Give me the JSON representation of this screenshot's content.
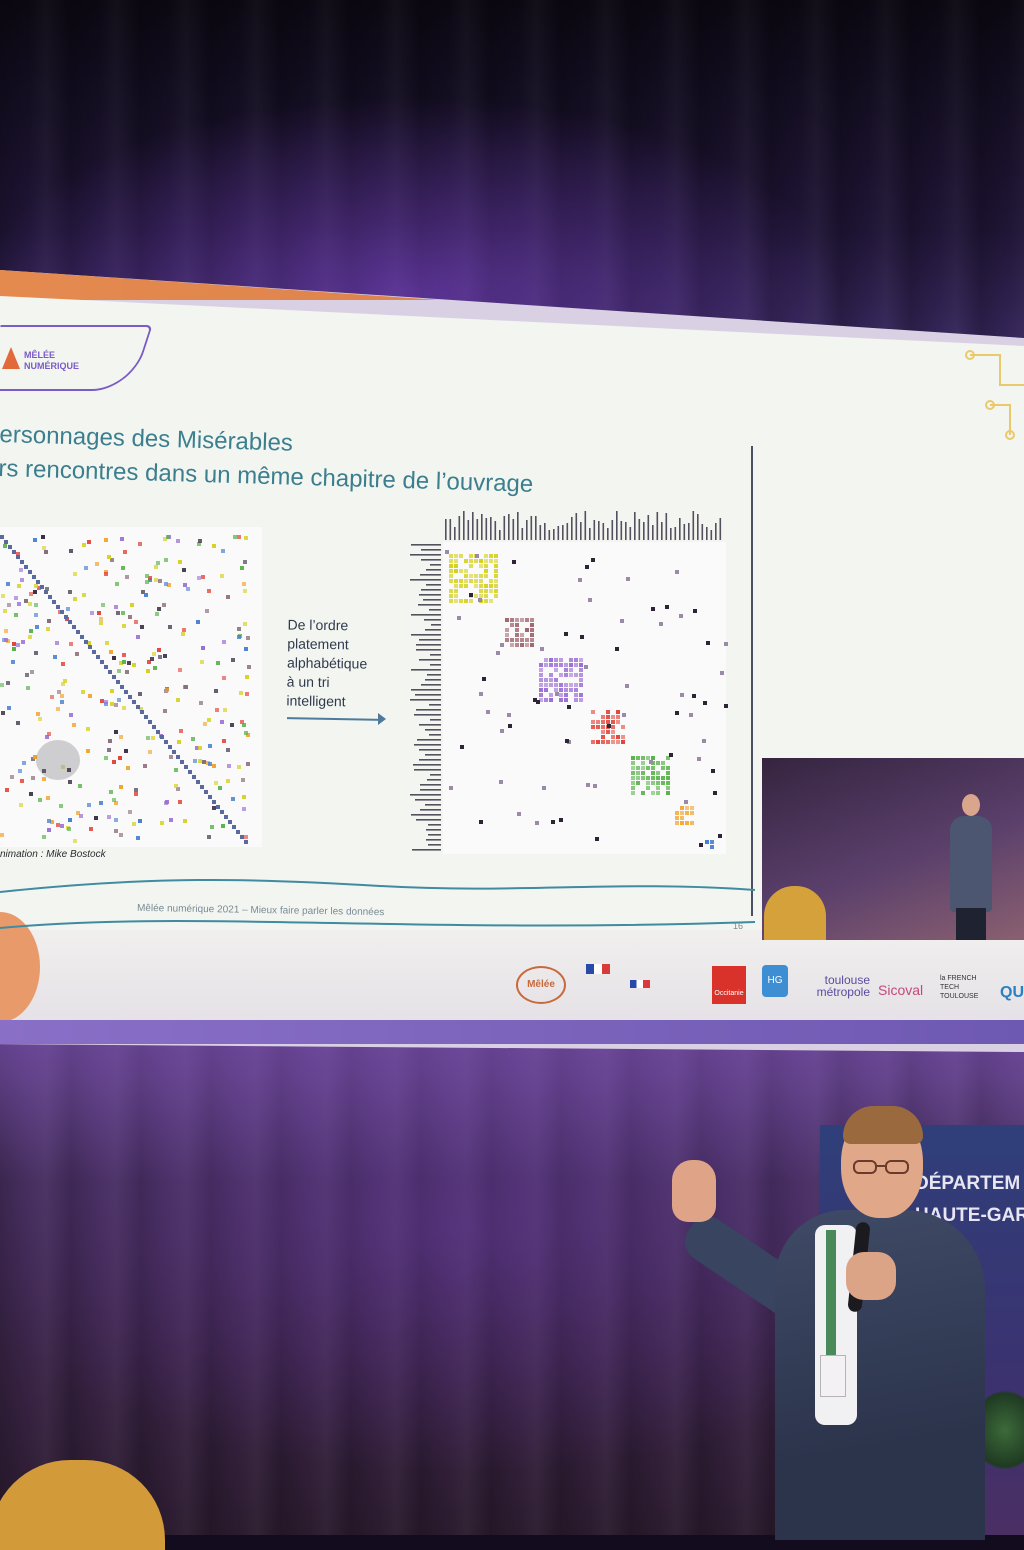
{
  "slide": {
    "logo_line1": "MÊLÉE",
    "logo_line2": "NUMÉRIQUE",
    "title_line1": "ersonnages des Misérables",
    "title_line2": "rs rencontres dans un même chapitre de l’ouvrage",
    "arrow_note": [
      "De l’ordre",
      "platement",
      "alphabétique",
      "à un tri",
      "intelligent"
    ],
    "credit": "nimation : Mike Bostock",
    "footer": "Mêlée numérique 2021 – Mieux faire parler les données",
    "page_number": "16"
  },
  "partners": {
    "melee": "Mêlée",
    "occitanie": "Occitanie",
    "hg": "HG",
    "toulouse_metropole": "toulouse métropole",
    "sicoval": "Sicoval",
    "french_tech": "la FRENCH TECH TOULOUSE",
    "qu": "QU"
  },
  "banner": {
    "line1": "DÉPARTEM",
    "line2": "HAUTE-GAR"
  },
  "colors": {
    "title": "#3b7f8f",
    "accent_orange": "#e58a4f",
    "accent_purple": "#7a5bc7",
    "cluster_yellow": "#d6d11e",
    "cluster_purple": "#9b6fd6",
    "cluster_red": "#e2453a",
    "cluster_green": "#59b24a",
    "cluster_orange": "#f2a22a",
    "cluster_blue": "#4a7fd0"
  }
}
